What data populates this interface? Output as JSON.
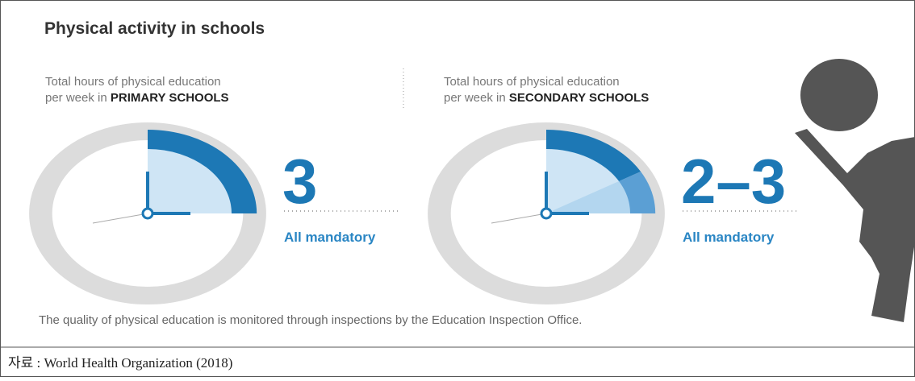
{
  "title": "Physical activity in schools",
  "panels": [
    {
      "label_line1": "Total hours of physical education",
      "label_prefix": "per week in ",
      "label_bold": "PRIMARY SCHOOLS",
      "value": "3",
      "note": "All mandatory"
    },
    {
      "label_line1": "Total hours of physical education",
      "label_prefix": "per week in ",
      "label_bold": "SECONDARY SCHOOLS",
      "value": "2–3",
      "note": "All mandatory"
    }
  ],
  "footer": "The quality of physical education is monitored through inspections by the Education Inspection Office.",
  "source": "자료 : World Health Organization (2018)"
}
